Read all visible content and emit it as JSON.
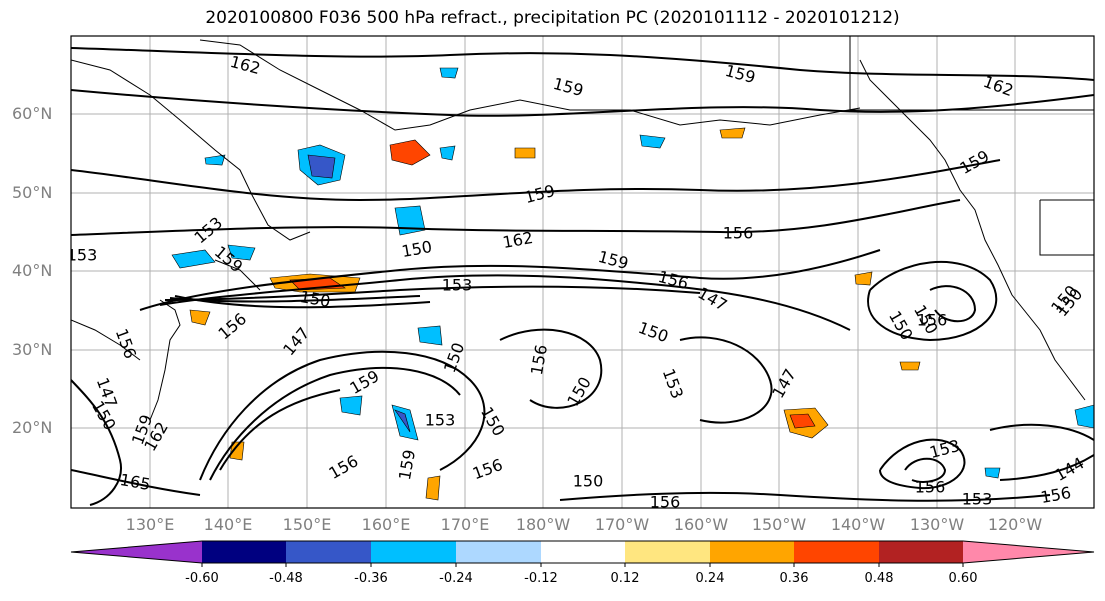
{
  "title": "2020100800 F036 500 hPa refract., precipitation PC (2020101112 - 2020101212)",
  "lat_labels": [
    "60°N",
    "50°N",
    "40°N",
    "30°N",
    "20°N"
  ],
  "lon_labels": [
    "130°E",
    "140°E",
    "150°E",
    "160°E",
    "170°E",
    "180°W",
    "170°W",
    "160°W",
    "150°W",
    "140°W",
    "130°W",
    "120°W"
  ],
  "contour_labels": [
    "162",
    "159",
    "159",
    "162",
    "159",
    "159",
    "156",
    "162",
    "159",
    "156",
    "150",
    "153",
    "153",
    "153",
    "150",
    "147",
    "156",
    "150",
    "147",
    "150",
    "150",
    "150",
    "156",
    "156",
    "159",
    "150",
    "153",
    "150",
    "147",
    "156",
    "159",
    "150",
    "153",
    "156",
    "156",
    "159",
    "156",
    "150",
    "147",
    "150",
    "162",
    "165",
    "153",
    "156",
    "153",
    "156",
    "144",
    "159",
    "150"
  ],
  "colorbar": {
    "ticks": [
      "-0.60",
      "-0.48",
      "-0.36",
      "-0.24",
      "-0.12",
      "0.12",
      "0.24",
      "0.36",
      "0.48",
      "0.60"
    ],
    "colors": [
      "#9932cc",
      "#000080",
      "#3657c8",
      "#00bfff",
      "#add8ff",
      "#ffffff",
      "#ffe680",
      "#ffa500",
      "#ff4500",
      "#b22222",
      "#ff88aa"
    ]
  }
}
